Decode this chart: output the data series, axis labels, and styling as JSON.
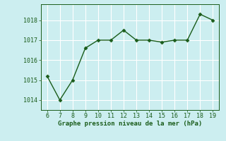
{
  "x": [
    6,
    7,
    8,
    9,
    10,
    11,
    12,
    13,
    14,
    15,
    16,
    17,
    18,
    19
  ],
  "y": [
    1015.2,
    1014.0,
    1015.0,
    1016.6,
    1017.0,
    1017.0,
    1017.5,
    1017.0,
    1017.0,
    1016.9,
    1017.0,
    1017.0,
    1018.3,
    1018.0
  ],
  "line_color": "#1a5c1a",
  "marker": "D",
  "marker_size": 2.5,
  "line_width": 1.0,
  "bg_color": "#cceef0",
  "grid_color": "#ffffff",
  "xlabel": "Graphe pression niveau de la mer (hPa)",
  "xlabel_color": "#1a5c1a",
  "xlabel_fontsize": 6.5,
  "tick_color": "#1a5c1a",
  "tick_fontsize": 6,
  "xlim": [
    5.5,
    19.5
  ],
  "ylim": [
    1013.5,
    1018.8
  ],
  "yticks": [
    1014,
    1015,
    1016,
    1017,
    1018
  ],
  "xticks": [
    6,
    7,
    8,
    9,
    10,
    11,
    12,
    13,
    14,
    15,
    16,
    17,
    18,
    19
  ]
}
